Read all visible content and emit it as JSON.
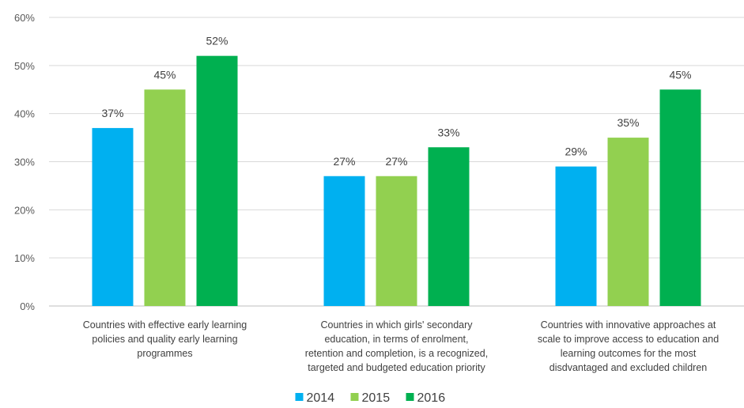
{
  "chart_data": {
    "type": "bar",
    "title": "",
    "xlabel": "",
    "ylabel": "",
    "ylim": [
      0,
      60
    ],
    "yticks": [
      "0%",
      "10%",
      "20%",
      "30%",
      "40%",
      "50%",
      "60%"
    ],
    "categories": [
      [
        "Countries with effective early learning",
        "policies and quality early learning",
        "programmes"
      ],
      [
        "Countries in which girls' secondary",
        "education, in terms of enrolment,",
        "retention and completion, is a recognized,",
        "targeted and budgeted education priority"
      ],
      [
        "Countries with innovative approaches at",
        "scale to improve access to education and",
        "learning outcomes for the most",
        "disdvantaged and excluded children"
      ]
    ],
    "series": [
      {
        "name": "2014",
        "color": "#00b0f0",
        "values": [
          37,
          27,
          29
        ],
        "labels": [
          "37%",
          "27%",
          "29%"
        ]
      },
      {
        "name": "2015",
        "color": "#92d050",
        "values": [
          45,
          27,
          35
        ],
        "labels": [
          "45%",
          "27%",
          "35%"
        ]
      },
      {
        "name": "2016",
        "color": "#00b050",
        "values": [
          52,
          33,
          45
        ],
        "labels": [
          "52%",
          "33%",
          "45%"
        ]
      }
    ],
    "grid": true,
    "legend": "bottom-center"
  }
}
